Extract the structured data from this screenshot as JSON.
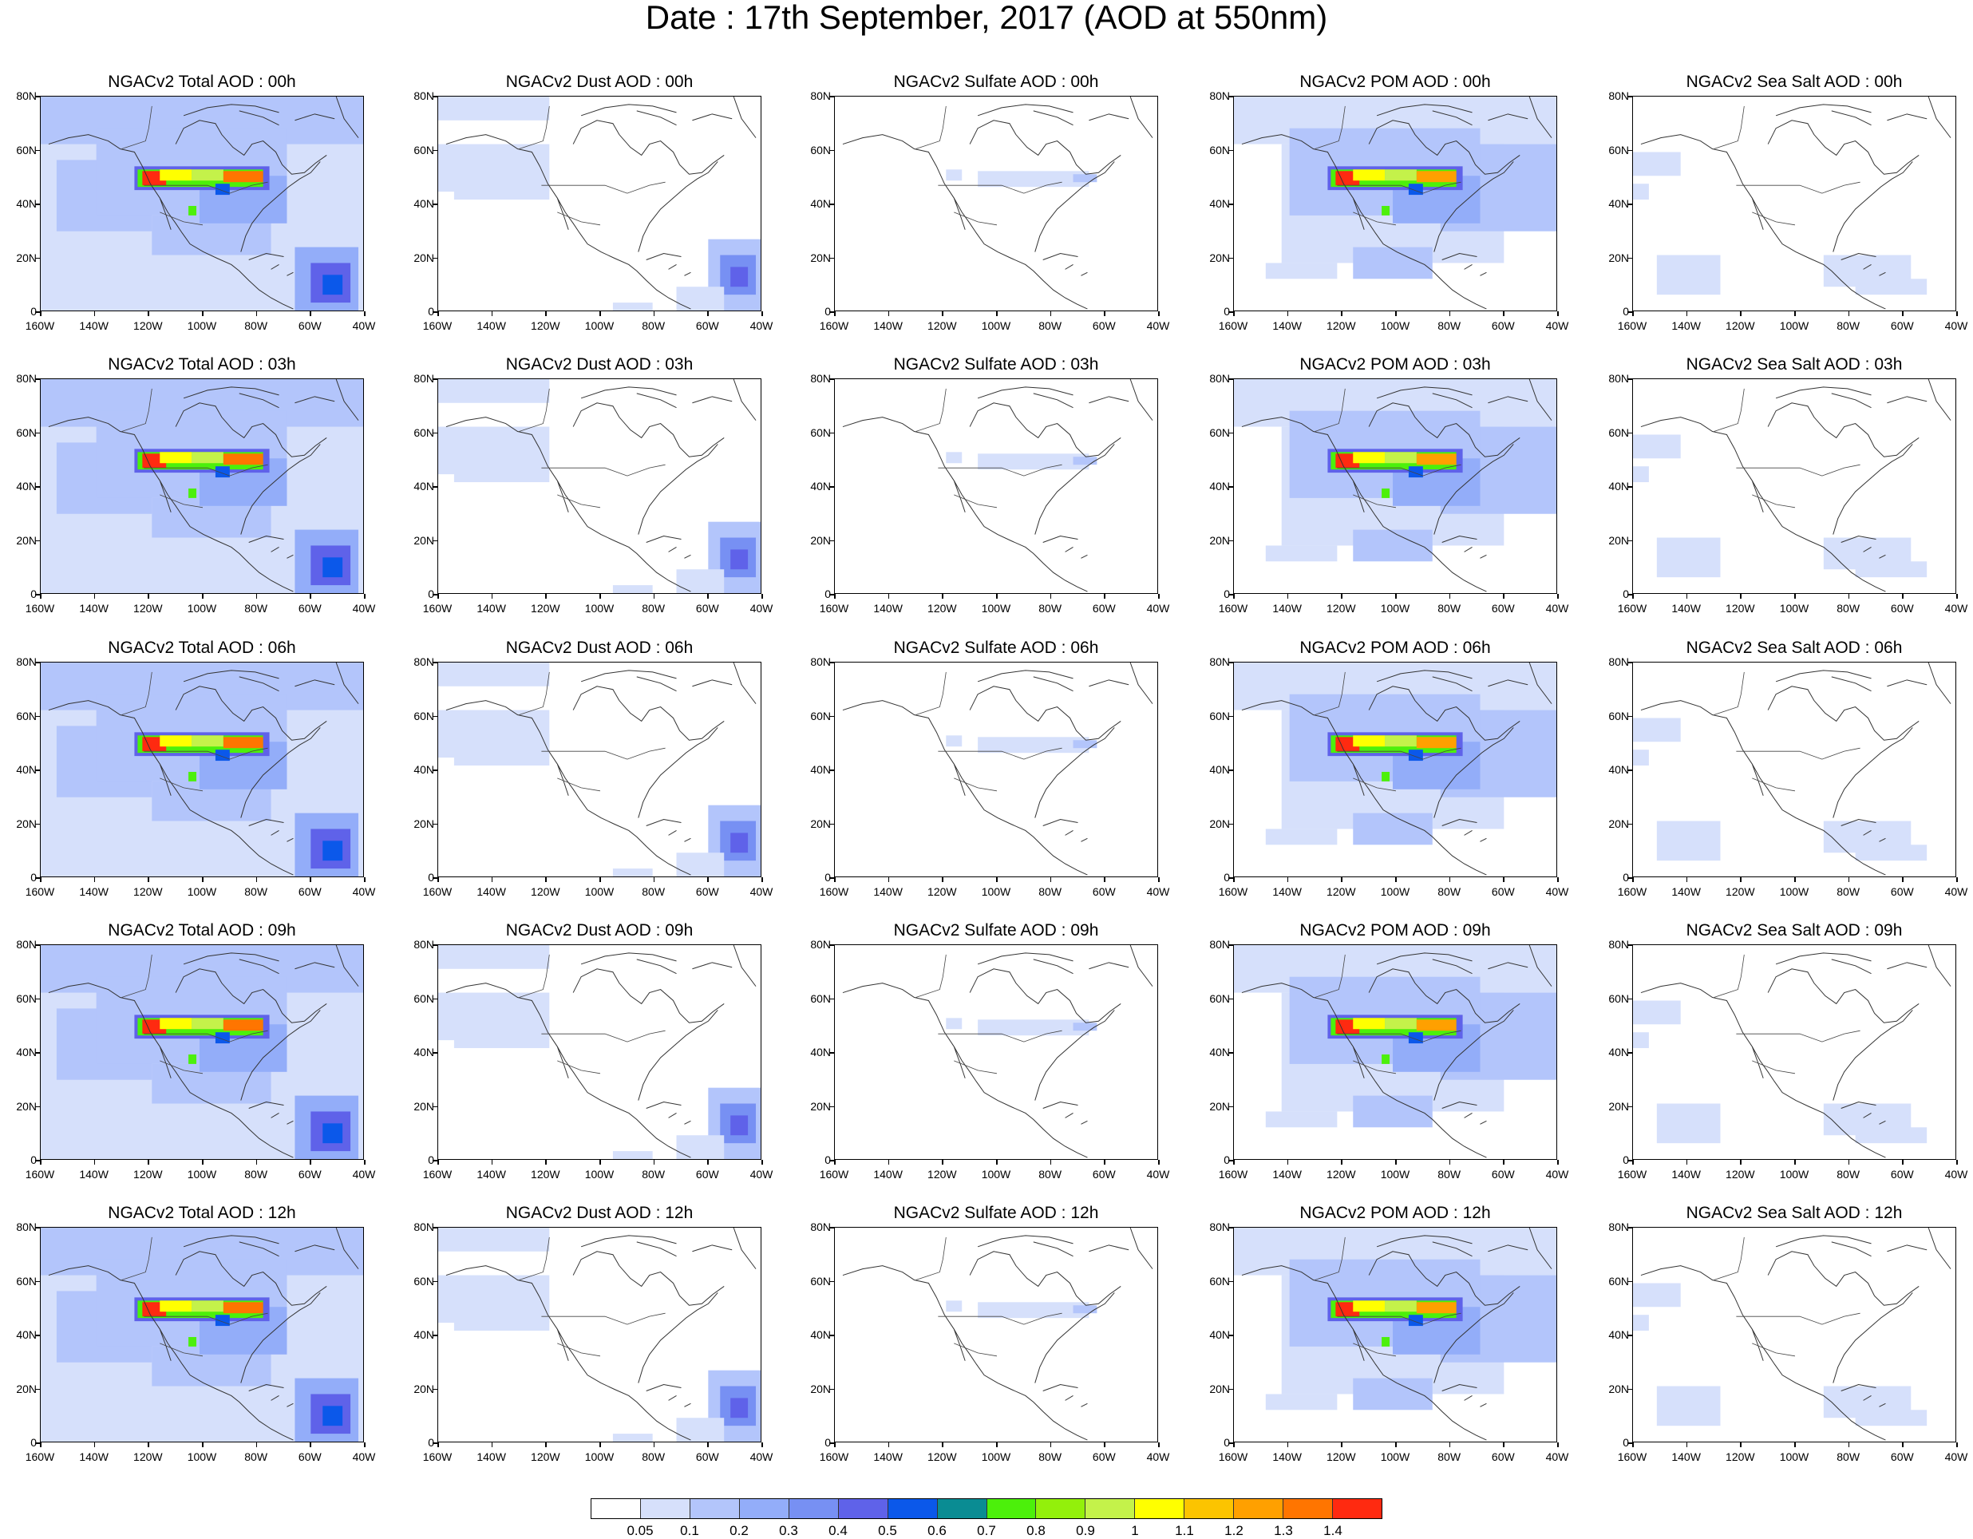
{
  "title": "Date : 17th September, 2017 (AOD at 550nm)",
  "lat_labels": [
    "80N",
    "60N",
    "40N",
    "20N",
    "0"
  ],
  "lon_labels": [
    "160W",
    "140W",
    "120W",
    "100W",
    "80W",
    "60W",
    "40W"
  ],
  "panels": [
    [
      "NGACv2 Total AOD : 00h",
      "NGACv2 Dust AOD : 00h",
      "NGACv2 Sulfate AOD : 00h",
      "NGACv2 POM AOD : 00h",
      "NGACv2 Sea Salt AOD : 00h"
    ],
    [
      "NGACv2 Total AOD : 03h",
      "NGACv2 Dust AOD : 03h",
      "NGACv2 Sulfate AOD : 03h",
      "NGACv2 POM AOD : 03h",
      "NGACv2 Sea Salt AOD : 03h"
    ],
    [
      "NGACv2 Total AOD : 06h",
      "NGACv2 Dust AOD : 06h",
      "NGACv2 Sulfate AOD : 06h",
      "NGACv2 POM AOD : 06h",
      "NGACv2 Sea Salt AOD : 06h"
    ],
    [
      "NGACv2 Total AOD : 09h",
      "NGACv2 Dust AOD : 09h",
      "NGACv2 Sulfate AOD : 09h",
      "NGACv2 POM AOD : 09h",
      "NGACv2 Sea Salt  AOD : 09h"
    ],
    [
      "NGACv2 Total AOD  : 12h",
      "NGACv2 Dust AOD : 12h",
      "NGACv2 Sulfate AOD : 12h",
      "NGACv2 POM  AOD : 12h",
      "NGACv2 Sea Salt  AOD : 12h"
    ]
  ],
  "colorbar": {
    "labels": [
      "0.05",
      "0.1",
      "0.2",
      "0.3",
      "0.4",
      "0.5",
      "0.6",
      "0.7",
      "0.8",
      "0.9",
      "1",
      "1.1",
      "1.2",
      "1.3",
      "1.4"
    ],
    "colors": [
      "#ffffff",
      "#d6e0fb",
      "#b3c5fb",
      "#93adf9",
      "#7790f3",
      "#5f62e9",
      "#0b58ea",
      "#0a8c93",
      "#4cf00b",
      "#93f00b",
      "#c4f24a",
      "#ffff00",
      "#fcc400",
      "#ffa000",
      "#ff7500",
      "#ff2a10"
    ]
  }
}
